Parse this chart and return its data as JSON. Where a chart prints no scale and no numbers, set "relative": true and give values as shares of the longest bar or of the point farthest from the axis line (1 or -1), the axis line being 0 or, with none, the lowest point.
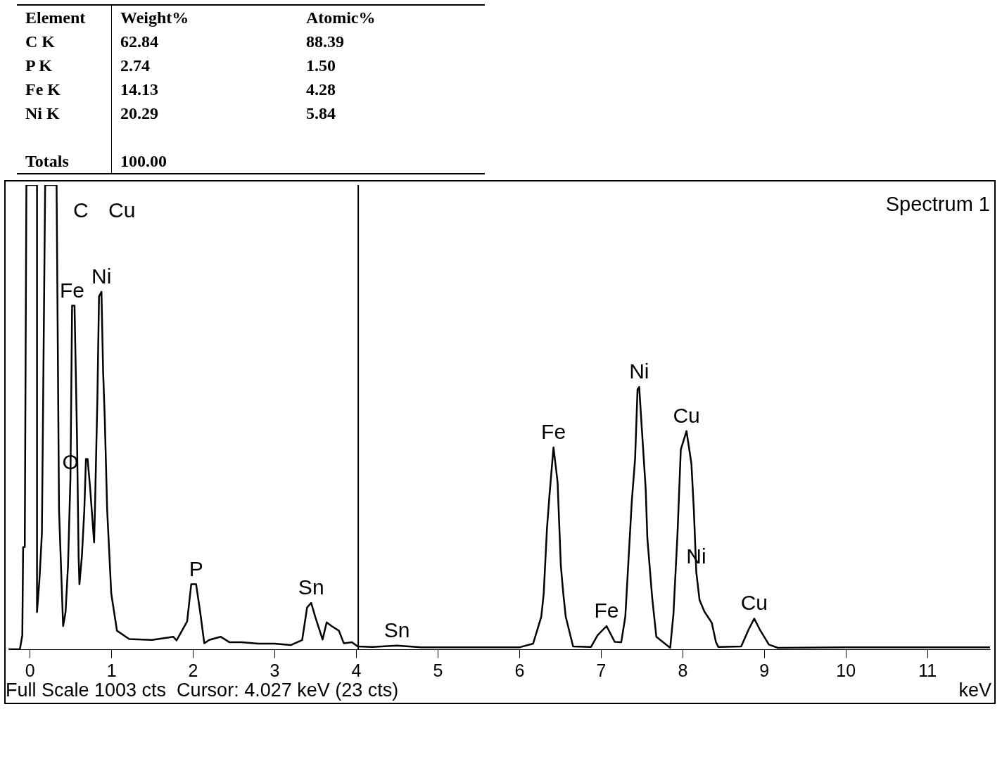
{
  "chart_data": [
    {
      "type": "other",
      "xlabel": "Element",
      "categories": [
        "C K",
        "P K",
        "Fe K",
        "Ni K",
        "Totals"
      ],
      "series": [
        {
          "name": "Weight%",
          "values": [
            62.84,
            2.74,
            14.13,
            20.29,
            100.0
          ],
          "value_labels": [
            "62.84",
            "2.74",
            "14.13",
            "20.29",
            "100.00"
          ]
        },
        {
          "name": "Atomic%",
          "values": [
            88.39,
            1.5,
            4.28,
            5.84,
            null
          ],
          "value_labels": [
            "88.39",
            "1.50",
            "4.28",
            "5.84",
            null
          ]
        }
      ]
    },
    {
      "type": "line",
      "title": "Spectrum 1",
      "xlabel": "keV",
      "relative": true,
      "color": "#000000",
      "x": [
        -0.26,
        -0.12,
        -0.09,
        -0.08,
        -0.06,
        -0.04,
        0.09,
        0.09,
        0.12,
        0.15,
        0.19,
        0.23,
        0.33,
        0.36,
        0.41,
        0.44,
        0.47,
        0.5,
        0.52,
        0.55,
        0.58,
        0.6,
        0.61,
        0.64,
        0.67,
        0.69,
        0.71,
        0.74,
        0.79,
        0.8,
        0.83,
        0.85,
        0.88,
        0.9,
        0.92,
        0.95,
        1.0,
        1.07,
        1.22,
        1.5,
        1.76,
        1.8,
        1.93,
        1.98,
        2.04,
        2.09,
        2.14,
        2.2,
        2.34,
        2.45,
        2.6,
        2.8,
        3.0,
        3.2,
        3.34,
        3.4,
        3.45,
        3.5,
        3.59,
        3.64,
        3.7,
        3.79,
        3.85,
        3.95,
        4.02,
        4.2,
        4.5,
        4.8,
        5.5,
        6.0,
        6.17,
        6.27,
        6.3,
        6.34,
        6.37,
        6.42,
        6.47,
        6.51,
        6.54,
        6.57,
        6.66,
        6.88,
        6.96,
        7.07,
        7.17,
        7.25,
        7.3,
        7.38,
        7.42,
        7.45,
        7.47,
        7.55,
        7.57,
        7.63,
        7.68,
        7.85,
        7.89,
        7.94,
        7.98,
        8.05,
        8.11,
        8.14,
        8.17,
        8.21,
        8.27,
        8.36,
        8.41,
        8.44,
        8.72,
        8.81,
        8.88,
        8.95,
        9.06,
        9.17,
        10.0,
        11.0,
        11.77
      ],
      "values": [
        0.0,
        0.0,
        0.03,
        0.22,
        0.22,
        1,
        1,
        0.08,
        0.15,
        0.25,
        1,
        1,
        1,
        0.3,
        0.05,
        0.08,
        0.18,
        0.37,
        0.74,
        0.74,
        0.46,
        0.2,
        0.14,
        0.2,
        0.3,
        0.41,
        0.41,
        0.35,
        0.23,
        0.3,
        0.54,
        0.76,
        0.77,
        0.6,
        0.5,
        0.3,
        0.12,
        0.04,
        0.022,
        0.02,
        0.027,
        0.019,
        0.06,
        0.14,
        0.14,
        0.08,
        0.013,
        0.02,
        0.027,
        0.015,
        0.015,
        0.012,
        0.012,
        0.009,
        0.02,
        0.09,
        0.1,
        0.07,
        0.021,
        0.058,
        0.05,
        0.04,
        0.013,
        0.015,
        0.006,
        0.005,
        0.008,
        0.004,
        0.004,
        0.004,
        0.012,
        0.07,
        0.12,
        0.26,
        0.33,
        0.435,
        0.36,
        0.18,
        0.12,
        0.07,
        0.006,
        0.005,
        0.03,
        0.05,
        0.016,
        0.015,
        0.07,
        0.32,
        0.41,
        0.56,
        0.565,
        0.345,
        0.24,
        0.11,
        0.027,
        0.003,
        0.076,
        0.25,
        0.43,
        0.47,
        0.4,
        0.3,
        0.166,
        0.106,
        0.081,
        0.057,
        0.016,
        0.005,
        0.006,
        0.042,
        0.066,
        0.042,
        0.01,
        0.003,
        0.004,
        0.004,
        0.004
      ],
      "xlim": [
        -0.26,
        11.77
      ],
      "xticks": [
        0,
        1,
        2,
        3,
        4,
        5,
        6,
        7,
        8,
        9,
        10,
        11
      ],
      "grid": false,
      "ref_lines": [
        {
          "axis": "x",
          "value": 4.027,
          "color": "#000000"
        }
      ],
      "annotations": [
        "C",
        "Cu",
        {
          "text": "Fe",
          "x": 0.52,
          "y": 0.74
        },
        {
          "text": "Ni",
          "x": 0.88,
          "y": 0.77
        },
        {
          "text": "O",
          "x": 0.5,
          "y": 0.37
        },
        {
          "text": "P",
          "x": 2.04,
          "y": 0.14
        },
        {
          "text": "Sn",
          "x": 3.45,
          "y": 0.1
        },
        {
          "text": "Sn",
          "x": 4.5,
          "y": 0.008
        },
        {
          "text": "Fe",
          "x": 6.42,
          "y": 0.435
        },
        {
          "text": "Fe",
          "x": 7.07,
          "y": 0.05
        },
        {
          "text": "Ni",
          "x": 7.47,
          "y": 0.565
        },
        {
          "text": "Cu",
          "x": 8.05,
          "y": 0.47
        },
        {
          "text": "Ni",
          "x": 8.17,
          "y": 0.166
        },
        {
          "text": "Cu",
          "x": 8.88,
          "y": 0.066
        },
        "Full Scale 1003 cts  Cursor: 4.027 keV (23 cts)"
      ]
    }
  ]
}
